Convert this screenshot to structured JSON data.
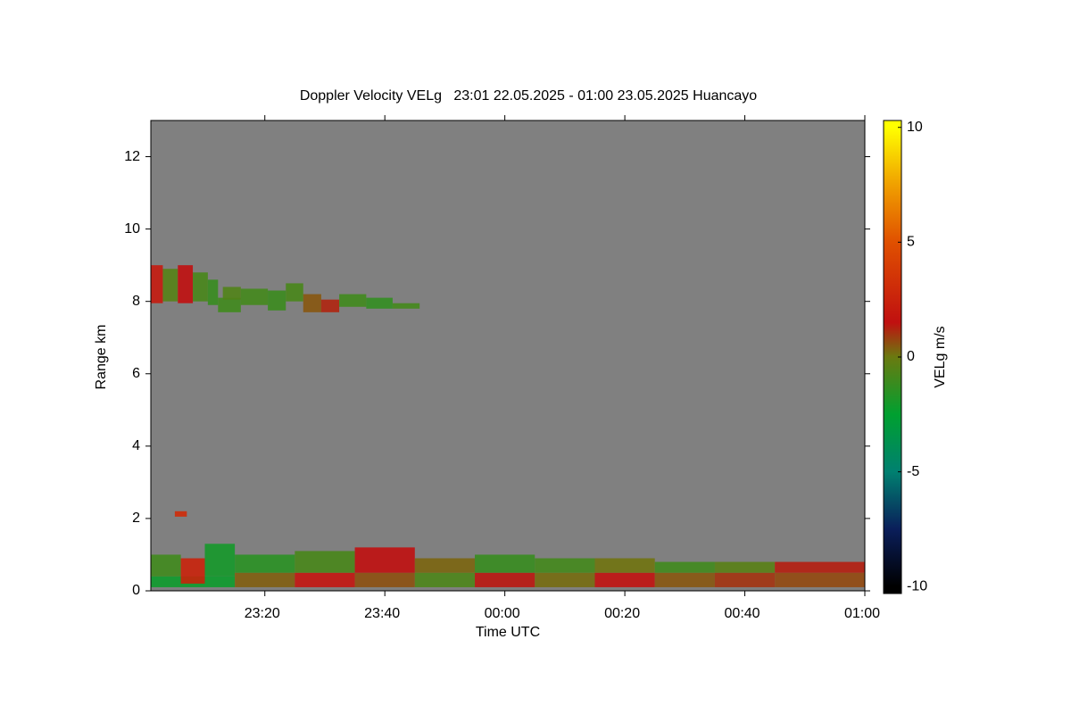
{
  "chart_data": {
    "type": "heatmap",
    "title": "Doppler Velocity VELg   23:01 22.05.2025 - 01:00 23.05.2025 Huancayo",
    "xlabel": "Time UTC",
    "ylabel": "Range km",
    "colorbar_label": "VELg m/s",
    "xlim": [
      1,
      120
    ],
    "xticks": [
      {
        "value": 20,
        "label": "23:20"
      },
      {
        "value": 40,
        "label": "23:40"
      },
      {
        "value": 60,
        "label": "00:00"
      },
      {
        "value": 80,
        "label": "00:20"
      },
      {
        "value": 100,
        "label": "00:40"
      },
      {
        "value": 120,
        "label": "01:00"
      }
    ],
    "ylim": [
      0,
      13
    ],
    "yticks": [
      0,
      2,
      4,
      6,
      8,
      10,
      12
    ],
    "clim": [
      -10.3,
      10.3
    ],
    "cticks": [
      -10,
      -5,
      0,
      5,
      10
    ],
    "colorscale": [
      [
        -10,
        "#000000"
      ],
      [
        -7.5,
        "#0a1e5a"
      ],
      [
        -5,
        "#008070"
      ],
      [
        -2.5,
        "#00a030"
      ],
      [
        0,
        "#6a7a10"
      ],
      [
        1.5,
        "#c01010"
      ],
      [
        5,
        "#e05000"
      ],
      [
        7.5,
        "#f0a000"
      ],
      [
        10,
        "#ffff00"
      ]
    ],
    "background": "#808080",
    "cells": [
      [
        1,
        3,
        7.95,
        9.0,
        2.0
      ],
      [
        3,
        5.5,
        8.0,
        8.9,
        -0.5
      ],
      [
        5.5,
        8,
        7.95,
        9.0,
        1.5
      ],
      [
        8,
        10.5,
        8.0,
        8.8,
        -0.8
      ],
      [
        10.5,
        12.2,
        7.9,
        8.6,
        -1.2
      ],
      [
        12.2,
        16,
        7.7,
        8.1,
        -1.0
      ],
      [
        13,
        16,
        8.05,
        8.4,
        -0.6
      ],
      [
        16,
        20.5,
        7.9,
        8.35,
        -0.9
      ],
      [
        20.5,
        23.5,
        7.75,
        8.3,
        -1.1
      ],
      [
        23.5,
        26.4,
        8.0,
        8.5,
        -0.8
      ],
      [
        26.4,
        29.4,
        7.7,
        8.2,
        0.5
      ],
      [
        29.4,
        32.4,
        7.7,
        8.05,
        1.2
      ],
      [
        32.4,
        36.9,
        7.85,
        8.2,
        -1.0
      ],
      [
        36.9,
        41.3,
        7.8,
        8.1,
        -1.3
      ],
      [
        41.3,
        45.8,
        7.8,
        7.95,
        -0.9
      ],
      [
        5,
        7,
        2.05,
        2.2,
        3.0
      ],
      [
        1,
        15,
        0.1,
        0.4,
        -2.2
      ],
      [
        1,
        6,
        0.4,
        1.0,
        -1.0
      ],
      [
        6,
        10,
        0.2,
        0.9,
        2.5
      ],
      [
        10,
        15,
        0.4,
        1.3,
        -2.0
      ],
      [
        15,
        25,
        0.1,
        0.5,
        0.4
      ],
      [
        15,
        25,
        0.5,
        1.0,
        -1.5
      ],
      [
        25,
        35,
        0.1,
        0.5,
        1.8
      ],
      [
        25,
        35,
        0.5,
        1.1,
        -0.8
      ],
      [
        35,
        45,
        0.1,
        0.5,
        0.6
      ],
      [
        35,
        45,
        0.5,
        1.2,
        1.5
      ],
      [
        45,
        55,
        0.1,
        0.5,
        -0.7
      ],
      [
        45,
        55,
        0.5,
        0.9,
        0.3
      ],
      [
        55,
        65,
        0.1,
        0.5,
        1.4
      ],
      [
        55,
        65,
        0.5,
        1.0,
        -1.2
      ],
      [
        65,
        75,
        0.1,
        0.5,
        0.2
      ],
      [
        65,
        75,
        0.5,
        0.9,
        -0.9
      ],
      [
        75,
        85,
        0.1,
        0.5,
        1.6
      ],
      [
        75,
        85,
        0.5,
        0.9,
        0.1
      ],
      [
        85,
        95,
        0.1,
        0.5,
        0.5
      ],
      [
        85,
        95,
        0.5,
        0.8,
        -1.0
      ],
      [
        95,
        105,
        0.1,
        0.5,
        1.0
      ],
      [
        95,
        105,
        0.5,
        0.8,
        -0.4
      ],
      [
        105,
        120,
        0.1,
        0.5,
        0.7
      ],
      [
        105,
        120,
        0.5,
        0.8,
        1.3
      ]
    ]
  }
}
